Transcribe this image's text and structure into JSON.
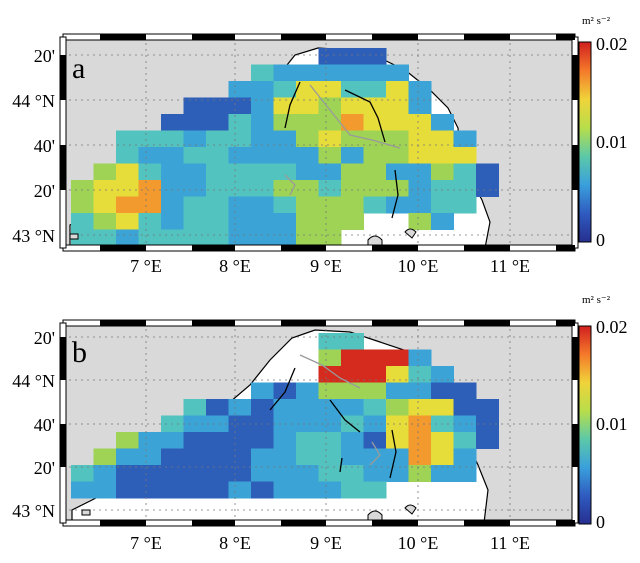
{
  "panels": [
    {
      "label": "a",
      "lat_labels": [
        "20'",
        "44 °N",
        "40'",
        "20'",
        "43 °N"
      ],
      "lon_labels": [
        "7 °E",
        "8 °E",
        "9 °E",
        "10 °E",
        "11 °E"
      ],
      "colorbar": {
        "unit": "m² s⁻²",
        "max_label": "0.02",
        "mid_label": "0.01",
        "min_label": "0"
      },
      "heat_rows": [
        "...........bbb.....",
        "........tcccccc....",
        ".......cctyyttyc...",
        ".....bbbcyygyyyc...",
        "....bbbtcgggoyyyc..",
        "..tttcttccgygggyyc.",
        "..tccttccccgcggyyy.",
        ".gytccttttccggccgtb",
        "gyyocctttggtgggcttb",
        "gyoocttcctgggtcctt.",
        "tgytcttcccggg..gc..",
        "ttcttttcccgg......."
      ]
    },
    {
      "label": "b",
      "lat_labels": [
        "20'",
        "44 °N",
        "40'",
        "20'",
        "43 °N"
      ],
      "lon_labels": [
        "7 °E",
        "8 °E",
        "9 °E",
        "10 °E",
        "11 °E"
      ],
      "colorbar": {
        "unit": "m² s⁻²",
        "max_label": "0.02",
        "mid_label": "0.01",
        "min_label": "0"
      },
      "heat_rows": [
        "...........tt......",
        "...........grrrc...",
        "...........rrrytc..",
        "........cbcgggccbb.",
        ".....tbcbcccctgyybb",
        "....tccbbccctcyotcb",
        "..gccbbbbcttcbyoytb",
        ".gccbbbbccttcccoyc.",
        "tcbbbbbbcccttccgcc.",
        "ccbbbbbcbccctt.....",
        "..................."
      ]
    }
  ],
  "colors": {
    "land": "#d9d9d9",
    "b": "#2e5fb8",
    "c": "#3ba3d6",
    "t": "#53c3bf",
    "g": "#9fd356",
    "y": "#e6dc3a",
    "o": "#f29a2e",
    "r": "#d52a1e"
  },
  "colorbar_gradient": [
    "#d11f1f",
    "#f4792a",
    "#f0d33a",
    "#b8de4a",
    "#5cc9a8",
    "#3aa0dc",
    "#2f5bc0",
    "#262f8f"
  ]
}
